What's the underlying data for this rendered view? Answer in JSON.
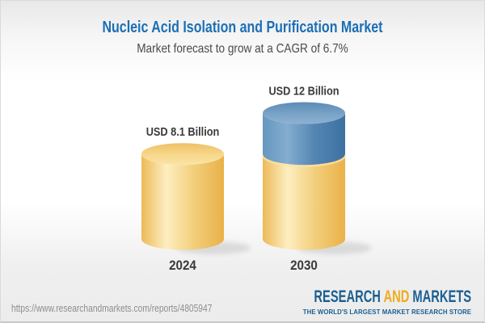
{
  "header": {
    "title": "Nucleic Acid Isolation and Purification Market",
    "subtitle": "Market forecast to grow at a CAGR of 6.7%"
  },
  "chart_data": {
    "type": "bar",
    "style": "3d-cylinder-stacked",
    "title": "Nucleic Acid Isolation and Purification Market",
    "subtitle": "Market forecast to grow at a CAGR of 6.7%",
    "unit": "USD Billion",
    "cagr": "6.7%",
    "categories": [
      "2024",
      "2030"
    ],
    "series": [
      {
        "name": "2024 market size",
        "color_key": "gold",
        "values": [
          8.1,
          8.1
        ]
      },
      {
        "name": "growth to 2030",
        "color_key": "blue",
        "values": [
          0,
          3.9
        ]
      }
    ],
    "totals": [
      8.1,
      12
    ],
    "value_labels": [
      "USD 8.1 Billion",
      "USD 12 Billion"
    ],
    "ylim": [
      0,
      13
    ],
    "gridlines": false,
    "legend": "none",
    "axes_shown": false
  },
  "footer": {
    "url": "https://www.researchandmarkets.com/reports/4805947",
    "logo": {
      "part1": "RESEARCH",
      "part2": "AND",
      "part3": "MARKETS",
      "tagline": "THE WORLD'S LARGEST MARKET RESEARCH STORE"
    }
  },
  "colors": {
    "title_blue": "#1c6fb5",
    "subtitle_gray": "#4a4a4a",
    "label_dark": "#3a3a3a",
    "url_gray": "#8e8e8e",
    "logo_blue": "#1b5f92",
    "logo_gold": "#efac1e",
    "gold": {
      "body": [
        "#ecba58",
        "#fdeec1",
        "#f3d07e",
        "#e9b148"
      ],
      "top": [
        "#eec066",
        "#f7d88c",
        "#fae3a6"
      ]
    },
    "blue": {
      "body": [
        "#6697bf",
        "#84adcf",
        "#5586b3",
        "#3c71a1"
      ],
      "top": [
        "#5b8cb6",
        "#7aa3c6",
        "#8db2d1"
      ]
    }
  }
}
